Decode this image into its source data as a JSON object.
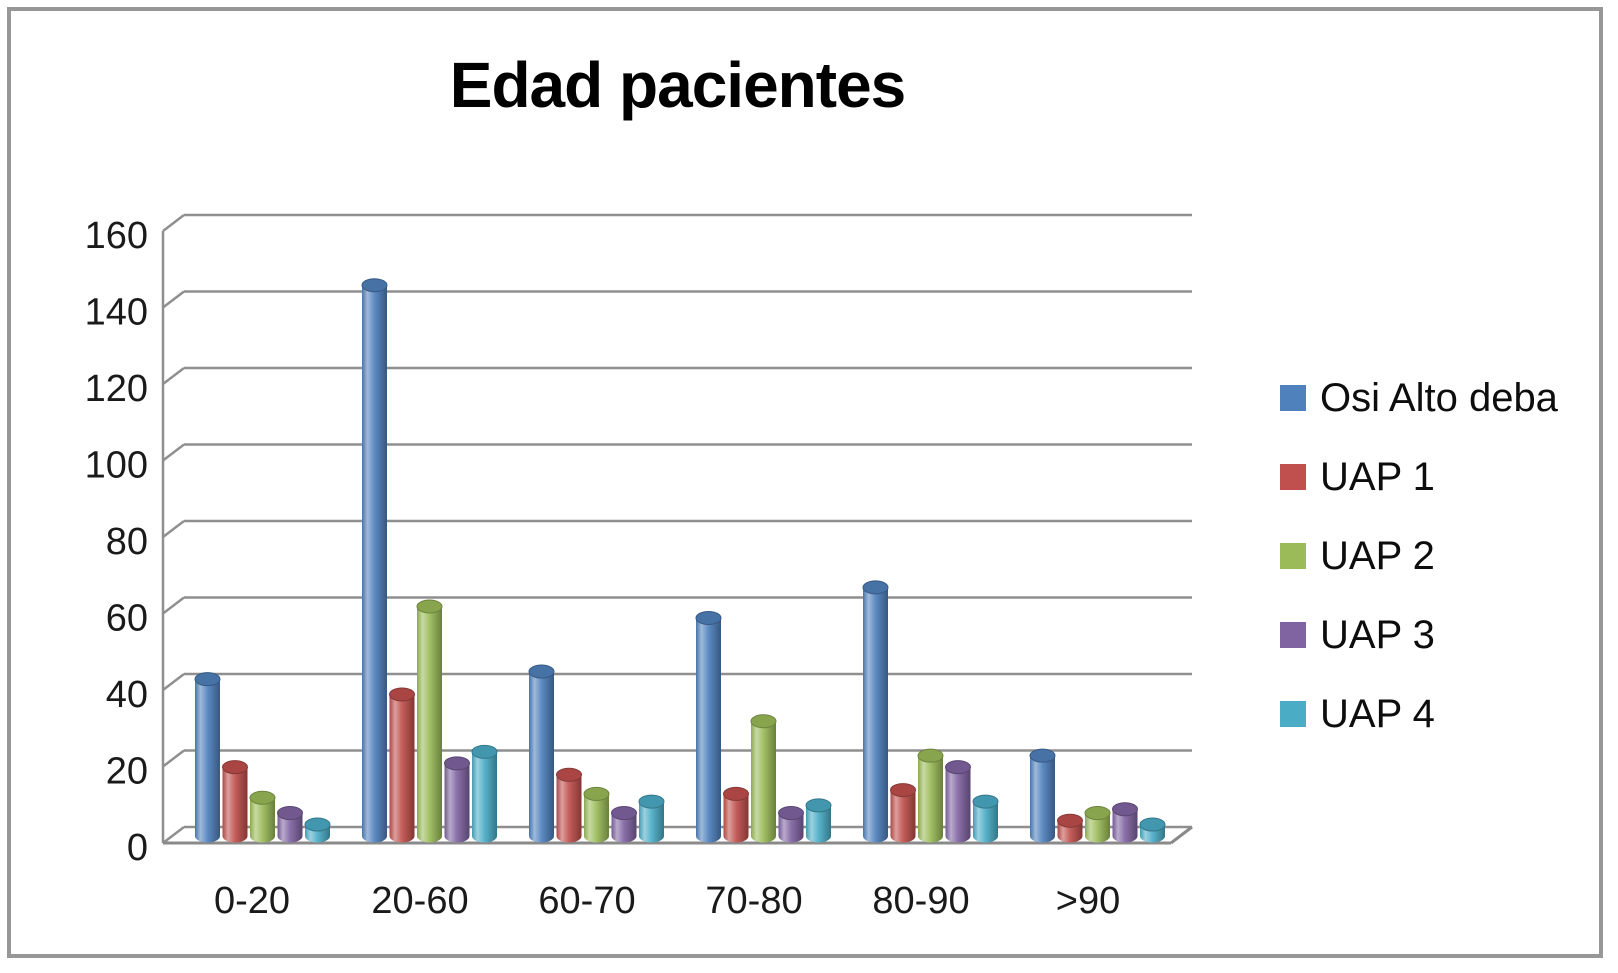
{
  "chart_data": {
    "type": "bar",
    "style": "3d-cylinder",
    "title": "Edad pacientes",
    "categories": [
      "0-20",
      "20-60",
      "60-70",
      "70-80",
      "80-90",
      ">90"
    ],
    "series": [
      {
        "name": "Osi Alto deba",
        "color": "#4F81BD",
        "values": [
          41,
          144,
          43,
          57,
          65,
          21
        ]
      },
      {
        "name": "UAP 1",
        "color": "#C0504D",
        "values": [
          18,
          37,
          16,
          11,
          12,
          4
        ]
      },
      {
        "name": "UAP 2",
        "color": "#9BBB59",
        "values": [
          10,
          60,
          11,
          30,
          21,
          6
        ]
      },
      {
        "name": "UAP 3",
        "color": "#8064A2",
        "values": [
          6,
          19,
          6,
          6,
          18,
          7
        ]
      },
      {
        "name": "UAP 4",
        "color": "#4BACC6",
        "values": [
          3,
          22,
          9,
          8,
          9,
          3
        ]
      }
    ],
    "xlabel": "",
    "ylabel": "",
    "ylim": [
      0,
      160
    ],
    "ytick_step": 20,
    "yticks": [
      "0",
      "20",
      "40",
      "60",
      "80",
      "100",
      "120",
      "140",
      "160"
    ],
    "grid": true,
    "gridline_color": "#8f8f8f",
    "legend_position": "right"
  }
}
